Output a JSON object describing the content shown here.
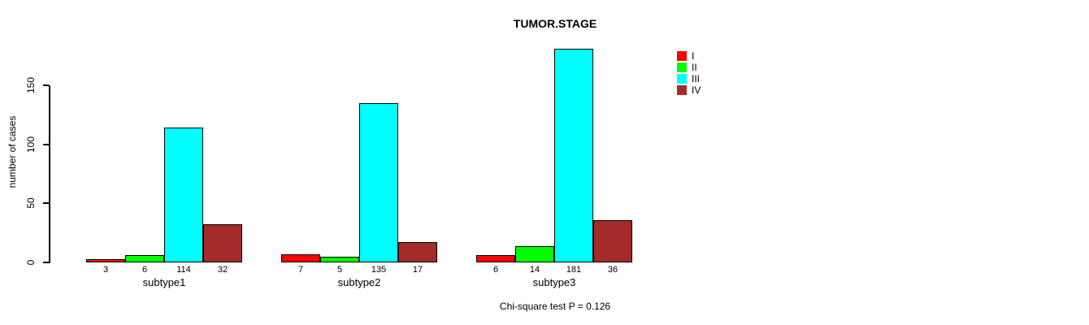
{
  "chart_data": {
    "type": "bar",
    "grouped": true,
    "title": "TUMOR.STAGE",
    "ylabel": "number of cases",
    "xlabel": "",
    "categories": [
      "subtype1",
      "subtype2",
      "subtype3"
    ],
    "series": [
      {
        "name": "I",
        "color": "#ff0000",
        "values": [
          3,
          7,
          6
        ]
      },
      {
        "name": "II",
        "color": "#00ff00",
        "values": [
          6,
          5,
          14
        ]
      },
      {
        "name": "III",
        "color": "#00ffff",
        "values": [
          114,
          135,
          181
        ]
      },
      {
        "name": "IV",
        "color": "#a52a2a",
        "values": [
          32,
          17,
          36
        ]
      }
    ],
    "yticks": [
      0,
      50,
      100,
      150
    ],
    "ylim": [
      0,
      181
    ],
    "grid": false,
    "bar_value_labels_shown": true,
    "legend_position": "top-right",
    "footer": "Chi-square test P = 0.126"
  },
  "colors": {
    "background": "#ffffff",
    "axis": "#000000",
    "text": "#000000"
  }
}
